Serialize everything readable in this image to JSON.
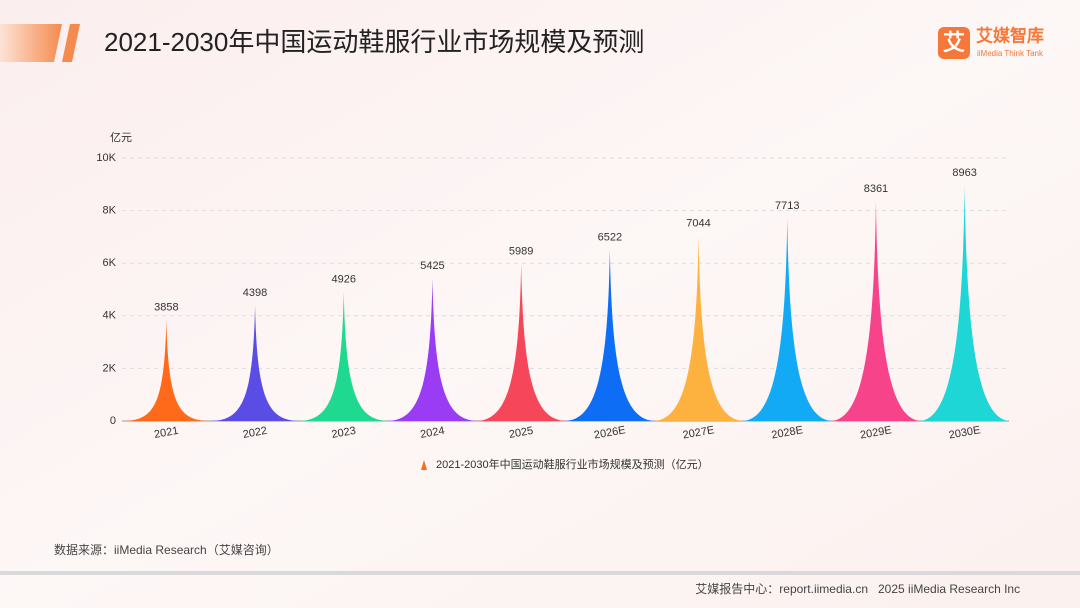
{
  "header": {
    "title": "2021-2030年中国运动鞋服行业市场规模及预测"
  },
  "logo": {
    "icon": "艾",
    "name": "艾媒智库",
    "subtitle": "iiMedia Think Tank"
  },
  "chart_data": {
    "type": "spike-bar",
    "y_label": "亿元",
    "categories": [
      "2021",
      "2022",
      "2023",
      "2024",
      "2025",
      "2026E",
      "2027E",
      "2028E",
      "2029E",
      "2030E"
    ],
    "series": [
      {
        "name": "2021-2030年中国运动鞋服行业市场规模及预测（亿元）",
        "color": "#ff6a1a",
        "values": [
          3858,
          4398,
          4926,
          5425,
          5989,
          6522,
          7044,
          7713,
          8361,
          8963
        ],
        "colors": [
          "#ff6a1a",
          "#5a4de6",
          "#1ed98f",
          "#9b3cf5",
          "#f6465a",
          "#0d6ef5",
          "#fdb240",
          "#12aaf5",
          "#f7438a",
          "#1fd6d6"
        ]
      }
    ],
    "ylim": [
      0,
      10000
    ],
    "yticks": [
      0,
      {
        "value": 2000,
        "label": "2K"
      },
      {
        "value": 4000,
        "label": "4K"
      },
      {
        "value": 6000,
        "label": "6K"
      },
      {
        "value": 8000,
        "label": "8K"
      },
      {
        "value": 10000,
        "label": "10K"
      }
    ],
    "grid": true
  },
  "source": "数据来源：iiMedia Research（艾媒咨询）",
  "footer": {
    "site": "艾媒报告中心：report.iimedia.cn",
    "copyright": "2025 iiMedia Research Inc"
  }
}
